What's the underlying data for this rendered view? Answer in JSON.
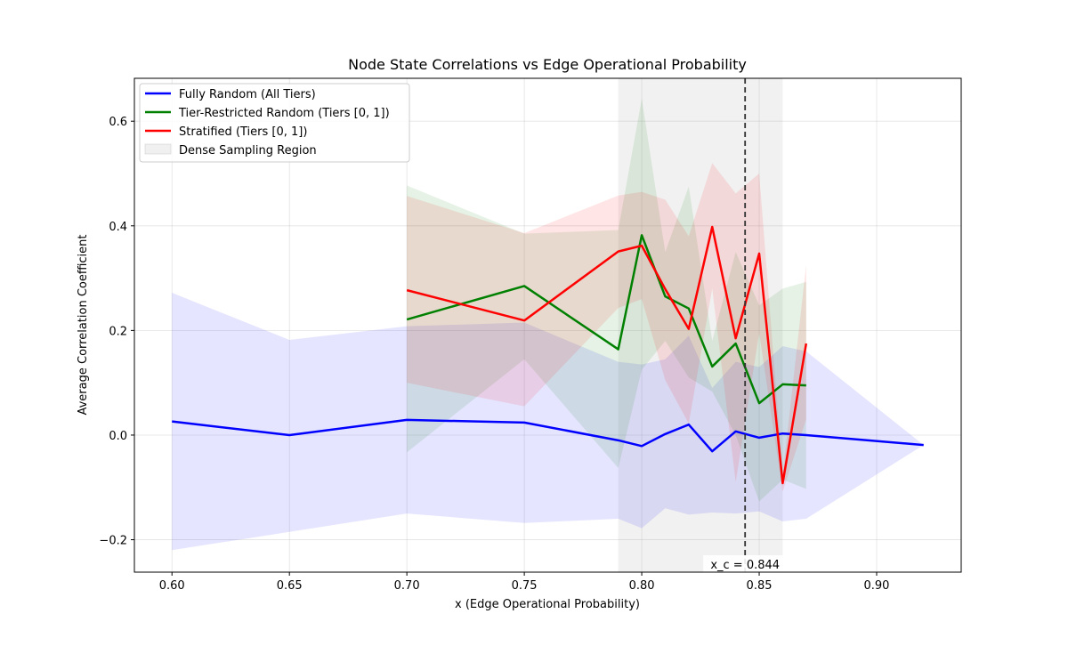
{
  "chart_data": {
    "type": "line",
    "title": "Node State Correlations vs Edge Operational Probability",
    "xlabel": "x (Edge Operational Probability)",
    "ylabel": "Average Correlation Coefficient",
    "xlim": [
      0.584,
      0.936
    ],
    "ylim": [
      -0.262,
      0.682
    ],
    "xticks": [
      0.6,
      0.65,
      0.7,
      0.75,
      0.8,
      0.85,
      0.9
    ],
    "xtick_labels": [
      "0.60",
      "0.65",
      "0.70",
      "0.75",
      "0.80",
      "0.85",
      "0.90"
    ],
    "yticks": [
      -0.2,
      0.0,
      0.2,
      0.4,
      0.6
    ],
    "ytick_labels": [
      "−0.2",
      "0.0",
      "0.2",
      "0.4",
      "0.6"
    ],
    "grid": true,
    "legend_position": "top-left",
    "dense_region": {
      "x0": 0.79,
      "x1": 0.86,
      "label": "Dense Sampling Region",
      "color": "#cccccc"
    },
    "critical_line": {
      "x": 0.844,
      "label": "x_c = 0.844"
    },
    "series": [
      {
        "name": "Fully Random (All Tiers)",
        "color": "#0000ff",
        "x": [
          0.6,
          0.65,
          0.7,
          0.75,
          0.79,
          0.8,
          0.81,
          0.82,
          0.83,
          0.84,
          0.85,
          0.86,
          0.87,
          0.92
        ],
        "y": [
          0.026,
          0.0,
          0.029,
          0.024,
          -0.01,
          -0.021,
          0.002,
          0.02,
          -0.031,
          0.007,
          -0.005,
          0.003,
          0.0,
          -0.019
        ],
        "lower": [
          -0.22,
          -0.185,
          -0.15,
          -0.168,
          -0.16,
          -0.178,
          -0.14,
          -0.152,
          -0.148,
          -0.15,
          -0.146,
          -0.165,
          -0.16,
          -0.019
        ],
        "upper": [
          0.272,
          0.182,
          0.208,
          0.215,
          0.14,
          0.135,
          0.145,
          0.19,
          0.09,
          0.14,
          0.13,
          0.17,
          0.16,
          -0.019
        ]
      },
      {
        "name": "Tier-Restricted Random (Tiers [0, 1])",
        "color": "#008000",
        "x": [
          0.7,
          0.75,
          0.79,
          0.8,
          0.81,
          0.82,
          0.83,
          0.84,
          0.85,
          0.86,
          0.87
        ],
        "y": [
          0.221,
          0.285,
          0.164,
          0.382,
          0.265,
          0.242,
          0.131,
          0.175,
          0.061,
          0.097,
          0.095
        ],
        "lower": [
          -0.033,
          0.145,
          -0.063,
          0.125,
          0.18,
          0.11,
          0.083,
          0.0,
          -0.127,
          -0.085,
          -0.103
        ],
        "upper": [
          0.477,
          0.385,
          0.392,
          0.643,
          0.35,
          0.475,
          0.18,
          0.35,
          0.248,
          0.28,
          0.293
        ]
      },
      {
        "name": "Stratified (Tiers [0, 1])",
        "color": "#ff0000",
        "x": [
          0.7,
          0.75,
          0.79,
          0.8,
          0.81,
          0.82,
          0.83,
          0.84,
          0.85,
          0.86,
          0.87
        ],
        "y": [
          0.277,
          0.219,
          0.351,
          0.362,
          0.279,
          0.203,
          0.398,
          0.185,
          0.347,
          -0.092,
          0.175
        ],
        "lower": [
          0.1,
          0.055,
          0.243,
          0.26,
          0.105,
          0.022,
          0.28,
          -0.09,
          0.195,
          -0.108,
          0.03
        ],
        "upper": [
          0.457,
          0.386,
          0.458,
          0.465,
          0.45,
          0.38,
          0.52,
          0.462,
          0.5,
          -0.076,
          0.325
        ]
      }
    ]
  }
}
